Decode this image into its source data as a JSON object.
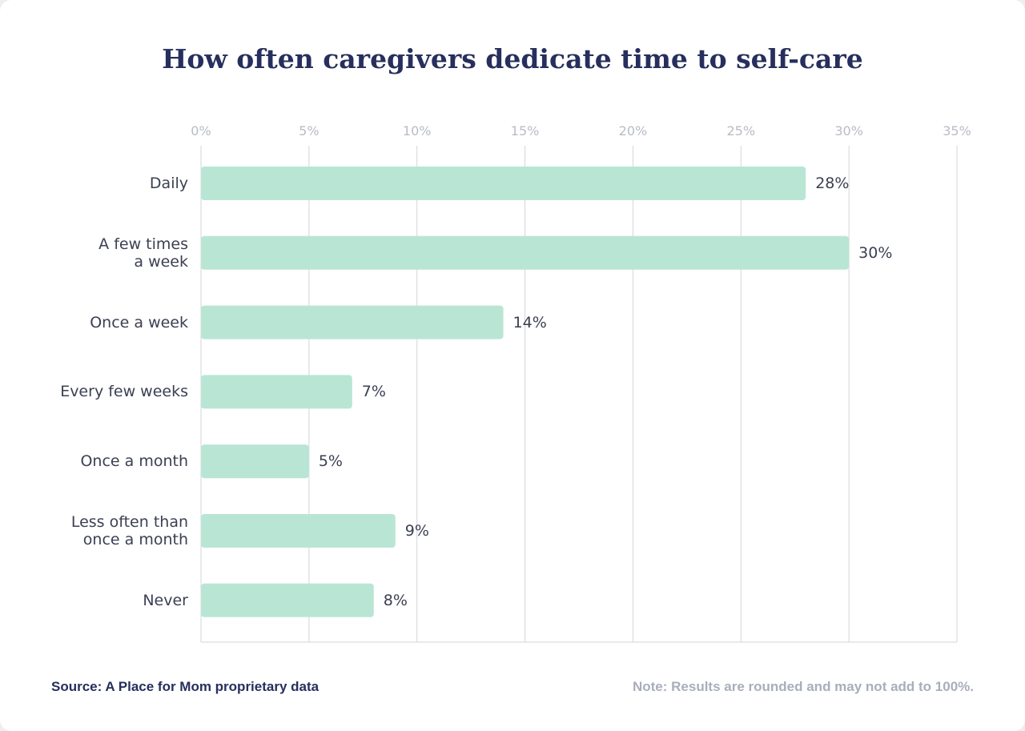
{
  "chart_data": {
    "type": "bar",
    "orientation": "horizontal",
    "title": "How often caregivers dedicate time to self-care",
    "categories": [
      "Daily",
      "A few times\na week",
      "Once a week",
      "Every few weeks",
      "Once a month",
      "Less often than\nonce a month",
      "Never"
    ],
    "values": [
      28,
      30,
      14,
      7,
      5,
      9,
      8
    ],
    "value_labels": [
      "28%",
      "30%",
      "14%",
      "7%",
      "5%",
      "9%",
      "8%"
    ],
    "color": "#b9e6d4",
    "xlim": [
      0,
      35
    ],
    "xticks": [
      {
        "value": 0,
        "label": "0%"
      },
      {
        "value": 5,
        "label": "5%"
      },
      {
        "value": 10,
        "label": "10%"
      },
      {
        "value": 15,
        "label": "15%"
      },
      {
        "value": 20,
        "label": "20%"
      },
      {
        "value": 25,
        "label": "25%"
      },
      {
        "value": 30,
        "label": "30%"
      },
      {
        "value": 35,
        "label": "35%"
      }
    ],
    "grid": true,
    "source": "Source: A Place for Mom proprietary data",
    "note": "Note: Results are rounded and may not add to 100%."
  }
}
